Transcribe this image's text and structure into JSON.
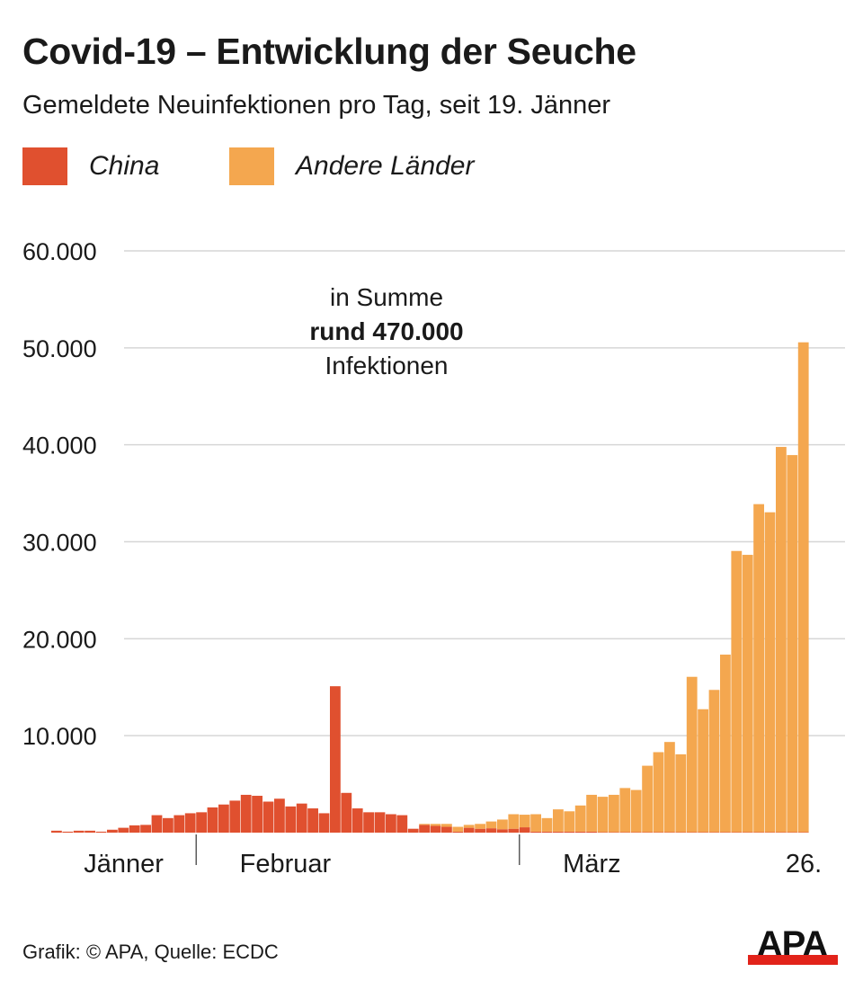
{
  "title": "Covid-19 – Entwicklung der Seuche",
  "subtitle": "Gemeldete Neuinfektionen pro Tag, seit 19. Jänner",
  "legend": [
    {
      "label": "China",
      "color": "#e0502f"
    },
    {
      "label": "Andere Länder",
      "color": "#f4a74f"
    }
  ],
  "annotation": {
    "line1": "in Summe",
    "line2": "rund 470.000",
    "line3": "Infektionen"
  },
  "footer": "Grafik: © APA, Quelle: ECDC",
  "logo_text": "APA",
  "chart_data": {
    "type": "bar",
    "stacked": true,
    "title": "Covid-19 – Entwicklung der Seuche",
    "subtitle": "Gemeldete Neuinfektionen pro Tag, seit 19. Jänner",
    "xlabel": "",
    "ylabel": "",
    "ylim": [
      0,
      60000
    ],
    "grid": true,
    "legend_position": "top-left",
    "yticks": [
      {
        "value": 10000,
        "label": "10.000"
      },
      {
        "value": 20000,
        "label": "20.000"
      },
      {
        "value": 30000,
        "label": "30.000"
      },
      {
        "value": 40000,
        "label": "40.000"
      },
      {
        "value": 50000,
        "label": "50.000"
      },
      {
        "value": 60000,
        "label": "60.000"
      }
    ],
    "x_start": "19. Jänner",
    "x_end": "26. März",
    "xticks": [
      {
        "label": "Jänner",
        "center_day": 6
      },
      {
        "label": "Februar",
        "center_day": 20.5,
        "separator_day": 13
      },
      {
        "label": "März",
        "center_day": 48,
        "separator_day": 42
      },
      {
        "label": "26.",
        "center_day": 67
      }
    ],
    "series": [
      {
        "name": "China",
        "color": "#e0502f",
        "values": [
          200,
          100,
          200,
          200,
          100,
          300,
          500,
          750,
          800,
          1800,
          1500,
          1800,
          2000,
          2100,
          2600,
          2900,
          3300,
          3900,
          3800,
          3200,
          3500,
          2700,
          3000,
          2500,
          2000,
          15100,
          4100,
          2500,
          2100,
          2100,
          1900,
          1800,
          400,
          800,
          700,
          600,
          100,
          500,
          400,
          450,
          350,
          400,
          550,
          100,
          100,
          100,
          100,
          100,
          100,
          50,
          50,
          50,
          50,
          50,
          50,
          50,
          50,
          50,
          50,
          50,
          50,
          50,
          50,
          50,
          50,
          50,
          50,
          50
        ]
      },
      {
        "name": "Andere Länder",
        "color": "#f4a74f",
        "values": [
          0,
          0,
          0,
          0,
          0,
          0,
          0,
          0,
          0,
          0,
          0,
          0,
          0,
          0,
          0,
          0,
          0,
          0,
          0,
          0,
          0,
          0,
          0,
          0,
          0,
          0,
          0,
          0,
          0,
          0,
          0,
          0,
          0,
          100,
          200,
          300,
          500,
          300,
          500,
          700,
          1000,
          1500,
          1300,
          1800,
          1400,
          2300,
          2100,
          2700,
          3800,
          3650,
          3850,
          4550,
          4350,
          6850,
          8250,
          9300,
          8030,
          16020,
          12680,
          14670,
          18310,
          29000,
          28600,
          33830,
          32990,
          39730,
          38890,
          50520
        ]
      }
    ]
  }
}
